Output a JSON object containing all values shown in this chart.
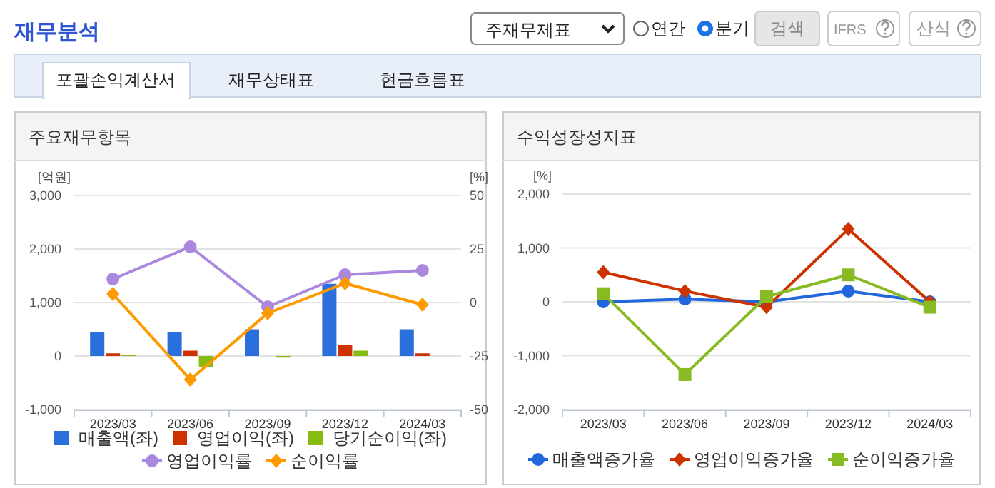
{
  "chart_data": [
    {
      "type": "other",
      "title": "재무분석",
      "annotations": [
        "주재무제표",
        "연간",
        "분기",
        "검색",
        "IFRS",
        "산식",
        "포괄손익계산서",
        "재무상태표",
        "현금흐름표"
      ]
    },
    {
      "type": "bar",
      "title": "주요재무항목",
      "ylabel": "[억원]",
      "y2label": "[%]",
      "categories": [
        "2023/03",
        "2023/06",
        "2023/09",
        "2023/12",
        "2024/03"
      ],
      "ylim": [
        -1000,
        3000
      ],
      "yticks": [
        {
          "value": -1000,
          "label": "-1,000"
        },
        0,
        {
          "value": 1000,
          "label": "1,000"
        },
        {
          "value": 2000,
          "label": "2,000"
        },
        {
          "value": 3000,
          "label": "3,000"
        }
      ],
      "y2lim": [
        -50,
        50
      ],
      "y2ticks": [
        -50,
        -25,
        0,
        25,
        50
      ],
      "grid": "y",
      "legend": "bottom",
      "series": [
        {
          "name": "매출액(좌)",
          "color": "#2a6fdb",
          "values": [
            450,
            450,
            500,
            1350,
            500
          ]
        },
        {
          "name": "영업이익(좌)",
          "color": "#cc3300",
          "values": [
            50,
            100,
            0,
            200,
            50
          ]
        },
        {
          "name": "당기순이익(좌)",
          "color": "#88bb11",
          "values": [
            20,
            -200,
            -30,
            100,
            0
          ]
        },
        {
          "name": "영업이익률",
          "type": "line",
          "axis": "y2",
          "marker": "circle",
          "color": "#aa88dd",
          "values": [
            11,
            26,
            -2,
            13,
            15
          ]
        },
        {
          "name": "순이익률",
          "type": "line",
          "axis": "y2",
          "marker": "diamond",
          "color": "#ff9900",
          "values": [
            4,
            -36,
            -5,
            9,
            -1
          ]
        }
      ]
    },
    {
      "type": "line",
      "title": "수익성장성지표",
      "ylabel": "[%]",
      "categories": [
        "2023/03",
        "2023/06",
        "2023/09",
        "2023/12",
        "2024/03"
      ],
      "ylim": [
        -2000,
        2000
      ],
      "yticks": [
        {
          "value": -2000,
          "label": "-2,000"
        },
        {
          "value": -1000,
          "label": "-1,000"
        },
        0,
        {
          "value": 1000,
          "label": "1,000"
        },
        {
          "value": 2000,
          "label": "2,000"
        }
      ],
      "grid": "y",
      "legend": "bottom",
      "series": [
        {
          "name": "매출액증가율",
          "marker": "circle",
          "color": "#2266dd",
          "values": [
            0,
            50,
            0,
            200,
            0
          ]
        },
        {
          "name": "영업이익증가율",
          "marker": "diamond",
          "color": "#cc3300",
          "values": [
            550,
            200,
            -100,
            1350,
            0
          ]
        },
        {
          "name": "순이익증가율",
          "marker": "square",
          "color": "#88bb22",
          "values": [
            150,
            -1350,
            100,
            500,
            -100
          ]
        }
      ]
    }
  ]
}
